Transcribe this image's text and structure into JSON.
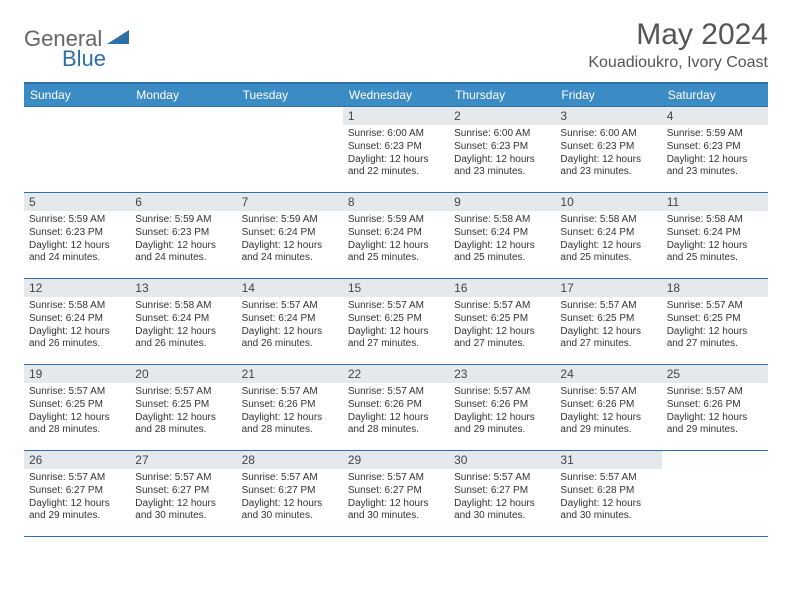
{
  "brand": {
    "name_a": "General",
    "name_b": "Blue"
  },
  "title": "May 2024",
  "location": "Kouadioukro, Ivory Coast",
  "colors": {
    "header_bg": "#3b8bc5",
    "border": "#2f6fa7",
    "daynum_bg": "#e6e9ec"
  },
  "weekdays": [
    "Sunday",
    "Monday",
    "Tuesday",
    "Wednesday",
    "Thursday",
    "Friday",
    "Saturday"
  ],
  "weeks": [
    [
      {
        "empty": true
      },
      {
        "empty": true
      },
      {
        "empty": true
      },
      {
        "d": "1",
        "sr": "6:00 AM",
        "ss": "6:23 PM",
        "dh": 12,
        "dm": 22
      },
      {
        "d": "2",
        "sr": "6:00 AM",
        "ss": "6:23 PM",
        "dh": 12,
        "dm": 23
      },
      {
        "d": "3",
        "sr": "6:00 AM",
        "ss": "6:23 PM",
        "dh": 12,
        "dm": 23
      },
      {
        "d": "4",
        "sr": "5:59 AM",
        "ss": "6:23 PM",
        "dh": 12,
        "dm": 23
      }
    ],
    [
      {
        "d": "5",
        "sr": "5:59 AM",
        "ss": "6:23 PM",
        "dh": 12,
        "dm": 24
      },
      {
        "d": "6",
        "sr": "5:59 AM",
        "ss": "6:23 PM",
        "dh": 12,
        "dm": 24
      },
      {
        "d": "7",
        "sr": "5:59 AM",
        "ss": "6:24 PM",
        "dh": 12,
        "dm": 24
      },
      {
        "d": "8",
        "sr": "5:59 AM",
        "ss": "6:24 PM",
        "dh": 12,
        "dm": 25
      },
      {
        "d": "9",
        "sr": "5:58 AM",
        "ss": "6:24 PM",
        "dh": 12,
        "dm": 25
      },
      {
        "d": "10",
        "sr": "5:58 AM",
        "ss": "6:24 PM",
        "dh": 12,
        "dm": 25
      },
      {
        "d": "11",
        "sr": "5:58 AM",
        "ss": "6:24 PM",
        "dh": 12,
        "dm": 25
      }
    ],
    [
      {
        "d": "12",
        "sr": "5:58 AM",
        "ss": "6:24 PM",
        "dh": 12,
        "dm": 26
      },
      {
        "d": "13",
        "sr": "5:58 AM",
        "ss": "6:24 PM",
        "dh": 12,
        "dm": 26
      },
      {
        "d": "14",
        "sr": "5:57 AM",
        "ss": "6:24 PM",
        "dh": 12,
        "dm": 26
      },
      {
        "d": "15",
        "sr": "5:57 AM",
        "ss": "6:25 PM",
        "dh": 12,
        "dm": 27
      },
      {
        "d": "16",
        "sr": "5:57 AM",
        "ss": "6:25 PM",
        "dh": 12,
        "dm": 27
      },
      {
        "d": "17",
        "sr": "5:57 AM",
        "ss": "6:25 PM",
        "dh": 12,
        "dm": 27
      },
      {
        "d": "18",
        "sr": "5:57 AM",
        "ss": "6:25 PM",
        "dh": 12,
        "dm": 27
      }
    ],
    [
      {
        "d": "19",
        "sr": "5:57 AM",
        "ss": "6:25 PM",
        "dh": 12,
        "dm": 28
      },
      {
        "d": "20",
        "sr": "5:57 AM",
        "ss": "6:25 PM",
        "dh": 12,
        "dm": 28
      },
      {
        "d": "21",
        "sr": "5:57 AM",
        "ss": "6:26 PM",
        "dh": 12,
        "dm": 28
      },
      {
        "d": "22",
        "sr": "5:57 AM",
        "ss": "6:26 PM",
        "dh": 12,
        "dm": 28
      },
      {
        "d": "23",
        "sr": "5:57 AM",
        "ss": "6:26 PM",
        "dh": 12,
        "dm": 29
      },
      {
        "d": "24",
        "sr": "5:57 AM",
        "ss": "6:26 PM",
        "dh": 12,
        "dm": 29
      },
      {
        "d": "25",
        "sr": "5:57 AM",
        "ss": "6:26 PM",
        "dh": 12,
        "dm": 29
      }
    ],
    [
      {
        "d": "26",
        "sr": "5:57 AM",
        "ss": "6:27 PM",
        "dh": 12,
        "dm": 29
      },
      {
        "d": "27",
        "sr": "5:57 AM",
        "ss": "6:27 PM",
        "dh": 12,
        "dm": 30
      },
      {
        "d": "28",
        "sr": "5:57 AM",
        "ss": "6:27 PM",
        "dh": 12,
        "dm": 30
      },
      {
        "d": "29",
        "sr": "5:57 AM",
        "ss": "6:27 PM",
        "dh": 12,
        "dm": 30
      },
      {
        "d": "30",
        "sr": "5:57 AM",
        "ss": "6:27 PM",
        "dh": 12,
        "dm": 30
      },
      {
        "d": "31",
        "sr": "5:57 AM",
        "ss": "6:28 PM",
        "dh": 12,
        "dm": 30
      },
      {
        "empty": true
      }
    ]
  ]
}
